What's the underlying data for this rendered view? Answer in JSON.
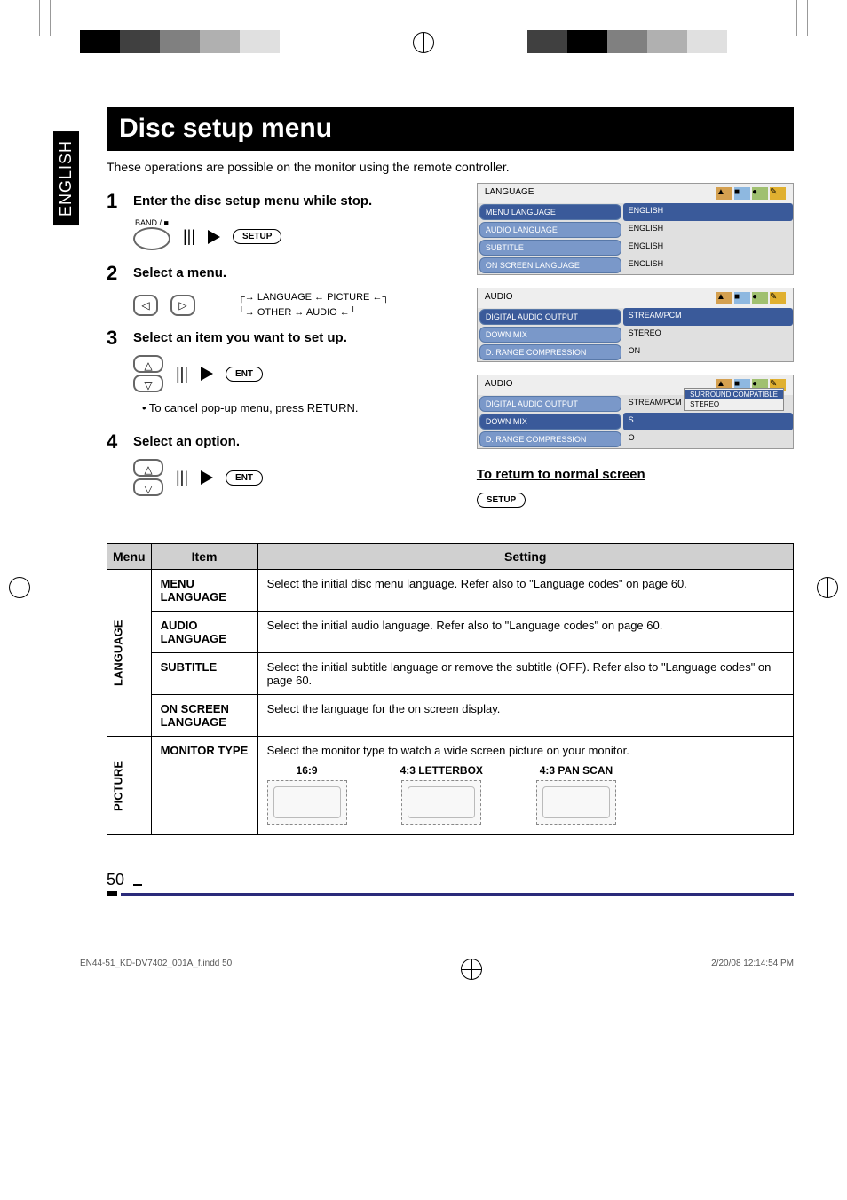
{
  "printer_marks": {
    "colors_left": [
      "#000000",
      "#404040",
      "#808080",
      "#b0b0b0",
      "#e0e0e0",
      "#ffffff"
    ],
    "colors_right": [
      "#404040",
      "#000000",
      "#808080",
      "#b0b0b0",
      "#e0e0e0",
      "#ffffff"
    ]
  },
  "lang_tab": "ENGLISH",
  "title": "Disc setup menu",
  "intro": "These operations are possible on the monitor using the remote controller.",
  "steps": [
    {
      "num": "1",
      "title": "Enter the disc setup menu while stop.",
      "btn_caption": "BAND / ■",
      "oval_label": "SETUP"
    },
    {
      "num": "2",
      "title": "Select a menu.",
      "cycle_top": "LANGUAGE ↔ PICTURE",
      "cycle_bot": "OTHER ↔ AUDIO"
    },
    {
      "num": "3",
      "title": "Select an item you want to set up.",
      "oval_label": "ENT",
      "note": "• To cancel pop-up menu, press RETURN."
    },
    {
      "num": "4",
      "title": "Select an option.",
      "oval_label": "ENT"
    }
  ],
  "return_heading": "To return to normal screen",
  "return_btn": "SETUP",
  "osd": {
    "panel1": {
      "header": "LANGUAGE",
      "rows": [
        {
          "label": "MENU LANGUAGE",
          "value": "ENGLISH",
          "selected": true
        },
        {
          "label": "AUDIO LANGUAGE",
          "value": "ENGLISH"
        },
        {
          "label": "SUBTITLE",
          "value": "ENGLISH"
        },
        {
          "label": "ON SCREEN LANGUAGE",
          "value": "ENGLISH"
        }
      ]
    },
    "panel2": {
      "header": "AUDIO",
      "rows": [
        {
          "label": "DIGITAL AUDIO OUTPUT",
          "value": "STREAM/PCM",
          "selected": true
        },
        {
          "label": "DOWN MIX",
          "value": "STEREO"
        },
        {
          "label": "D. RANGE COMPRESSION",
          "value": "ON"
        }
      ]
    },
    "panel3": {
      "header": "AUDIO",
      "rows": [
        {
          "label": "DIGITAL AUDIO OUTPUT",
          "value": "STREAM/PCM"
        },
        {
          "label": "DOWN MIX",
          "value": "S",
          "selected": true
        },
        {
          "label": "D. RANGE COMPRESSION",
          "value": "O"
        }
      ],
      "popup": [
        "SURROUND COMPATIBLE",
        "STEREO"
      ],
      "popup_selected": 0
    }
  },
  "table": {
    "headers": [
      "Menu",
      "Item",
      "Setting"
    ],
    "groups": [
      {
        "menu": "LANGUAGE",
        "rows": [
          {
            "item": "MENU LANGUAGE",
            "setting": "Select the initial disc menu language. Refer also to \"Language codes\" on page 60."
          },
          {
            "item": "AUDIO LANGUAGE",
            "setting": "Select the initial audio language. Refer also to \"Language codes\" on page 60."
          },
          {
            "item": "SUBTITLE",
            "setting": "Select the initial subtitle language or remove the subtitle (OFF). Refer also to \"Language codes\" on page 60."
          },
          {
            "item": "ON SCREEN LANGUAGE",
            "setting": "Select the language for the on screen display."
          }
        ]
      },
      {
        "menu": "PICTURE",
        "rows": [
          {
            "item": "MONITOR TYPE",
            "setting": "Select the monitor type to watch a wide screen picture on your monitor.",
            "aspects": [
              "16:9",
              "4:3 LETTERBOX",
              "4:3 PAN SCAN"
            ]
          }
        ]
      }
    ]
  },
  "page_number": "50",
  "footer_left": "EN44-51_KD-DV7402_001A_f.indd   50",
  "footer_right": "2/20/08   12:14:54 PM"
}
